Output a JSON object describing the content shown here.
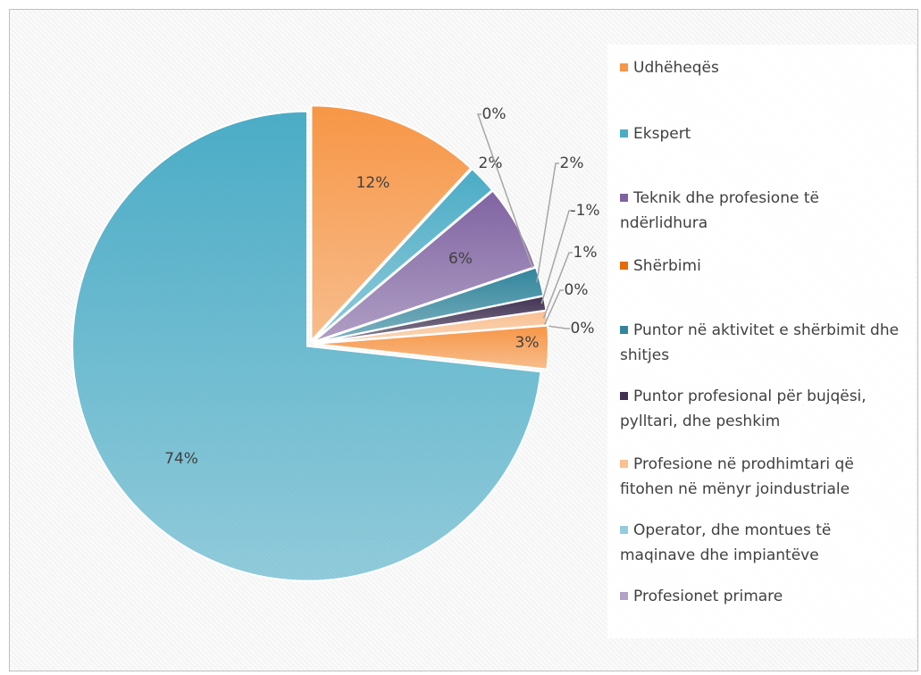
{
  "chart_data": {
    "type": "pie",
    "categories": [
      "Udhëheqës",
      "Ekspert",
      "Teknik dhe profesione të ndërlidhura",
      "Shërbimi",
      "Puntor në aktivitet e shërbimit dhe shitjes",
      "Puntor profesional për bujqësi, pylltari, dhe peshkim",
      "Profesione në prodhimtari që fitohen në mënyr joindustriale",
      "Operator, dhe montues të maqinave dhe impiantëve",
      "Profesionet primare",
      null,
      null
    ],
    "values": [
      12,
      2,
      6,
      0,
      2,
      -1,
      1,
      0,
      0,
      3,
      74
    ],
    "value_labels": [
      "12%",
      "2%",
      "6%",
      "0%",
      "2%",
      "-1%",
      "1%",
      "0%",
      "0%",
      "3%",
      "74%"
    ],
    "colors": [
      "#f79646",
      "#4bacc6",
      "#8064a2",
      "#e46c0a",
      "#31859c",
      "#403152",
      "#fac090",
      "#93cddd",
      "#b3a2c7",
      "#f79646",
      "#4bacc6"
    ],
    "legend": "right"
  }
}
